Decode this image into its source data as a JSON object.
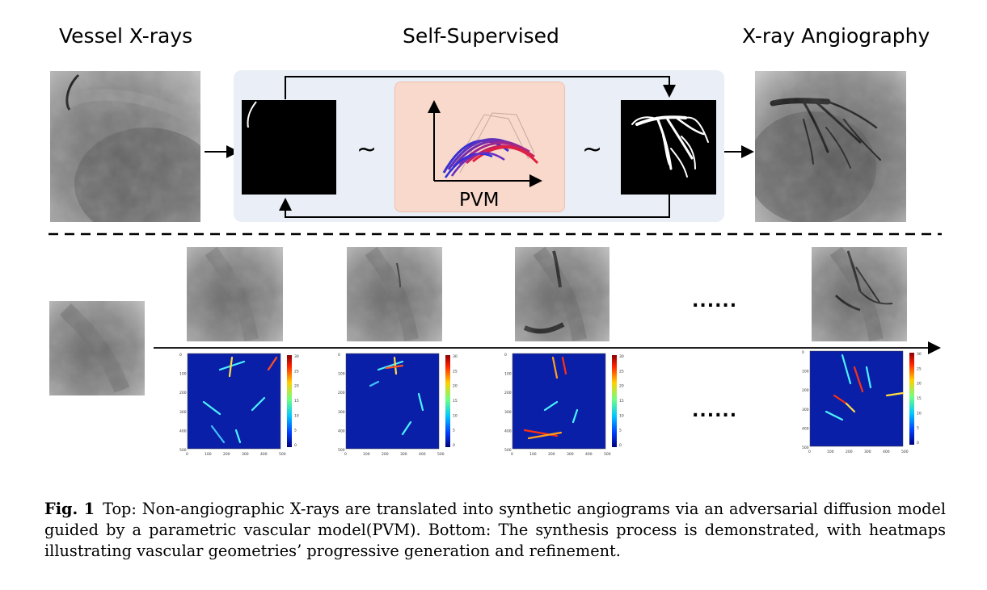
{
  "header": {
    "left_title": "Vessel X-rays",
    "center_title": "Self-Supervised",
    "right_title": "X-ray Angiography"
  },
  "pipeline": {
    "model_label": "PVM",
    "approx_symbol": "~"
  },
  "bottom": {
    "ellipsis": "......",
    "heatmap_colorbar_ticks": [
      "30",
      "25",
      "20",
      "15",
      "10",
      "5",
      "0"
    ],
    "heatmap_axis_ticks_x": [
      "0",
      "100",
      "200",
      "300",
      "400",
      "500"
    ],
    "heatmap_axis_ticks_y": [
      "0",
      "100",
      "200",
      "300",
      "400",
      "500"
    ]
  },
  "caption": {
    "label": "Fig. 1",
    "text": "Top: Non-angiographic X-rays are translated into synthetic angiograms via an adversarial diffusion model guided by a parametric vascular model(PVM). Bottom: The synthesis process is demonstrated, with heatmaps illustrating vascular geometries’ progressive generation and refinement."
  },
  "colors": {
    "panel_bg": "#e9eef7",
    "pvm_bg": "#f8d9cb",
    "heatmap_bg": "#0a1fa8"
  }
}
